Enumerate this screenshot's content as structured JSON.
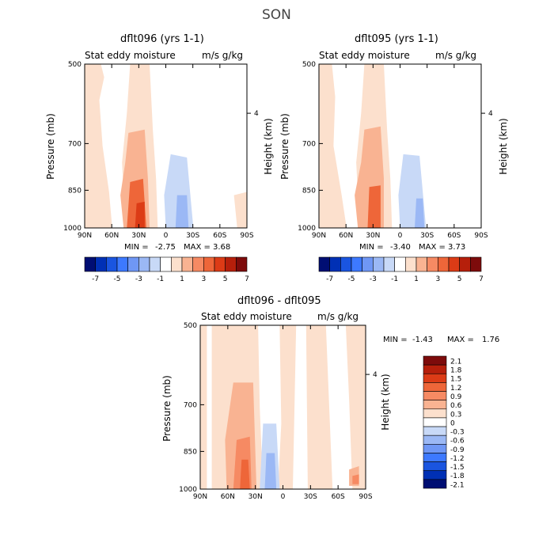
{
  "title": "SON",
  "chart_data": [
    {
      "type": "heatmap",
      "title": "dflt096 (yrs 1-1)",
      "subtitle_left": "Stat eddy moisture",
      "subtitle_right": "m/s g/kg",
      "ylabel": "Pressure (mb)",
      "y2label": "Height (km)",
      "x_ticks": [
        "90N",
        "60N",
        "30N",
        "0",
        "30S",
        "60S",
        "90S"
      ],
      "y_ticks": [
        "500",
        "700",
        "850",
        "1000"
      ],
      "y2_ticks": [
        "4"
      ],
      "stats": {
        "min_label": "MIN =",
        "min": "-2.75",
        "max_label": "MAX =",
        "max": "3.68"
      },
      "colorbar_labels": [
        "-7",
        "-5",
        "-3",
        "-1",
        "1",
        "3",
        "5",
        "7"
      ],
      "colorbar_colors": [
        "#000e73",
        "#0030b5",
        "#1a55e0",
        "#3d79ff",
        "#6f97f5",
        "#9bb8f5",
        "#c8d9f7",
        "#ffffff",
        "#fce0cd",
        "#f9b392",
        "#f68a63",
        "#ee6639",
        "#dc3b16",
        "#b61f0b",
        "#7d0b0b"
      ],
      "layers": [
        {
          "value": 0.5,
          "xy": [
            [
              0,
              0
            ],
            [
              10,
              0
            ],
            [
              12,
              8
            ],
            [
              9,
              22
            ],
            [
              11,
              50
            ],
            [
              15,
              78
            ],
            [
              17,
              100
            ],
            [
              0,
              100
            ]
          ]
        },
        {
          "value": 0.5,
          "xy": [
            [
              28,
              0
            ],
            [
              40,
              0
            ],
            [
              42,
              40
            ],
            [
              44,
              70
            ],
            [
              45,
              100
            ],
            [
              25,
              100
            ],
            [
              23,
              60
            ],
            [
              26,
              30
            ]
          ]
        },
        {
          "value": -0.5,
          "xy": [
            [
              42,
              0
            ],
            [
              100,
              0
            ],
            [
              100,
              100
            ],
            [
              46,
              100
            ],
            [
              45,
              70
            ],
            [
              43,
              40
            ]
          ]
        },
        {
          "value": 0.5,
          "xy": [
            [
              92,
              80
            ],
            [
              100,
              78
            ],
            [
              100,
              100
            ],
            [
              94,
              100
            ]
          ]
        },
        {
          "value": 1.5,
          "xy": [
            [
              27,
              42
            ],
            [
              37,
              40
            ],
            [
              39,
              70
            ],
            [
              40,
              100
            ],
            [
              24,
              100
            ],
            [
              22,
              80
            ],
            [
              25,
              60
            ]
          ]
        },
        {
          "value": 3.0,
          "xy": [
            [
              28,
              72
            ],
            [
              36,
              70
            ],
            [
              38,
              100
            ],
            [
              26,
              100
            ]
          ]
        },
        {
          "value": 4.0,
          "xy": [
            [
              32,
              85
            ],
            [
              37,
              84
            ],
            [
              37,
              100
            ],
            [
              31,
              100
            ]
          ]
        },
        {
          "value": -1.5,
          "xy": [
            [
              53,
              55
            ],
            [
              63,
              57
            ],
            [
              67,
              100
            ],
            [
              50,
              100
            ],
            [
              49,
              80
            ]
          ]
        },
        {
          "value": -2.5,
          "xy": [
            [
              57,
              80
            ],
            [
              63,
              80
            ],
            [
              64,
              100
            ],
            [
              56,
              100
            ]
          ]
        }
      ]
    },
    {
      "type": "heatmap",
      "title": "dflt095 (yrs 1-1)",
      "subtitle_left": "Stat eddy moisture",
      "subtitle_right": "m/s g/kg",
      "ylabel": "Pressure (mb)",
      "y2label": "Height (km)",
      "x_ticks": [
        "90N",
        "60N",
        "30N",
        "0",
        "30S",
        "60S",
        "90S"
      ],
      "y_ticks": [
        "500",
        "700",
        "850",
        "1000"
      ],
      "y2_ticks": [
        "4"
      ],
      "stats": {
        "min_label": "MIN =",
        "min": "-3.40",
        "max_label": "MAX =",
        "max": "3.73"
      },
      "colorbar_labels": [
        "-7",
        "-5",
        "-3",
        "-1",
        "1",
        "3",
        "5",
        "7"
      ],
      "colorbar_colors": [
        "#000e73",
        "#0030b5",
        "#1a55e0",
        "#3d79ff",
        "#6f97f5",
        "#9bb8f5",
        "#c8d9f7",
        "#ffffff",
        "#fce0cd",
        "#f9b392",
        "#f68a63",
        "#ee6639",
        "#dc3b16",
        "#b61f0b",
        "#7d0b0b"
      ],
      "layers": [
        {
          "value": 0.5,
          "xy": [
            [
              0,
              0
            ],
            [
              8,
              0
            ],
            [
              10,
              20
            ],
            [
              9,
              50
            ],
            [
              14,
              80
            ],
            [
              17,
              100
            ],
            [
              0,
              100
            ]
          ]
        },
        {
          "value": 0.5,
          "xy": [
            [
              28,
              0
            ],
            [
              40,
              0
            ],
            [
              42,
              40
            ],
            [
              44,
              70
            ],
            [
              45,
              100
            ],
            [
              25,
              100
            ],
            [
              23,
              60
            ],
            [
              26,
              30
            ]
          ]
        },
        {
          "value": -0.5,
          "xy": [
            [
              42,
              0
            ],
            [
              100,
              0
            ],
            [
              100,
              100
            ],
            [
              46,
              100
            ],
            [
              45,
              70
            ],
            [
              43,
              40
            ]
          ]
        },
        {
          "value": 1.5,
          "xy": [
            [
              28,
              40
            ],
            [
              38,
              38
            ],
            [
              40,
              70
            ],
            [
              40,
              100
            ],
            [
              24,
              100
            ],
            [
              22,
              80
            ],
            [
              26,
              60
            ]
          ]
        },
        {
          "value": 3.0,
          "xy": [
            [
              31,
              75
            ],
            [
              38,
              74
            ],
            [
              38,
              100
            ],
            [
              30,
              100
            ]
          ]
        },
        {
          "value": -1.5,
          "xy": [
            [
              52,
              55
            ],
            [
              62,
              56
            ],
            [
              66,
              100
            ],
            [
              50,
              100
            ],
            [
              49,
              80
            ]
          ]
        },
        {
          "value": -3.0,
          "xy": [
            [
              60,
              82
            ],
            [
              64,
              82
            ],
            [
              65,
              100
            ],
            [
              59,
              100
            ]
          ]
        }
      ]
    },
    {
      "type": "heatmap",
      "title": "dflt096 - dflt095",
      "subtitle_left": "Stat eddy moisture",
      "subtitle_right": "m/s g/kg",
      "ylabel": "Pressure (mb)",
      "y2label": "Height (km)",
      "x_ticks": [
        "90N",
        "60N",
        "30N",
        "0",
        "30S",
        "60S",
        "90S"
      ],
      "y_ticks": [
        "500",
        "700",
        "850",
        "1000"
      ],
      "y2_ticks": [
        "4"
      ],
      "stats": {
        "min_label": "MIN =",
        "min": "-1.43",
        "max_label": "MAX =",
        "max": "1.76"
      },
      "colorbar_labels": [
        "2.1",
        "1.8",
        "1.5",
        "1.2",
        "0.9",
        "0.6",
        "0.3",
        "0",
        "-0.3",
        "-0.6",
        "-0.9",
        "-1.2",
        "-1.5",
        "-1.8",
        "-2.1"
      ],
      "colorbar_colors": [
        "#7d0b0b",
        "#b61f0b",
        "#dc3b16",
        "#ee6639",
        "#f68a63",
        "#f9b392",
        "#fce0cd",
        "#ffffff",
        "#c8d9f7",
        "#9bb8f5",
        "#6f97f5",
        "#3d79ff",
        "#1a55e0",
        "#0030b5",
        "#000e73"
      ],
      "layers": [
        {
          "value": 0.15,
          "xy": [
            [
              0,
              0
            ],
            [
              100,
              0
            ],
            [
              100,
              100
            ],
            [
              0,
              100
            ]
          ]
        },
        {
          "value": -0.15,
          "xy": [
            [
              4,
              0
            ],
            [
              7,
              0
            ],
            [
              7,
              100
            ],
            [
              4,
              100
            ]
          ]
        },
        {
          "value": -0.15,
          "xy": [
            [
              35,
              0
            ],
            [
              48,
              0
            ],
            [
              49,
              60
            ],
            [
              47,
              100
            ],
            [
              38,
              100
            ],
            [
              36,
              50
            ]
          ]
        },
        {
          "value": -0.15,
          "xy": [
            [
              58,
              0
            ],
            [
              64,
              0
            ],
            [
              65,
              100
            ],
            [
              56,
              100
            ]
          ]
        },
        {
          "value": -0.15,
          "xy": [
            [
              76,
              0
            ],
            [
              88,
              0
            ],
            [
              90,
              45
            ],
            [
              92,
              100
            ],
            [
              80,
              100
            ],
            [
              78,
              50
            ]
          ]
        },
        {
          "value": 0.45,
          "xy": [
            [
              20,
              35
            ],
            [
              32,
              35
            ],
            [
              34,
              100
            ],
            [
              16,
              100
            ],
            [
              15,
              70
            ]
          ]
        },
        {
          "value": 0.75,
          "xy": [
            [
              22,
              70
            ],
            [
              30,
              68
            ],
            [
              31,
              100
            ],
            [
              20,
              100
            ]
          ]
        },
        {
          "value": 1.05,
          "xy": [
            [
              25,
              82
            ],
            [
              29,
              82
            ],
            [
              30,
              100
            ],
            [
              24,
              100
            ]
          ]
        },
        {
          "value": -0.45,
          "xy": [
            [
              38,
              60
            ],
            [
              46,
              60
            ],
            [
              48,
              100
            ],
            [
              36,
              100
            ]
          ]
        },
        {
          "value": -0.75,
          "xy": [
            [
              40,
              78
            ],
            [
              45,
              78
            ],
            [
              46,
              100
            ],
            [
              39,
              100
            ]
          ]
        },
        {
          "value": 0.45,
          "xy": [
            [
              90,
              88
            ],
            [
              96,
              86
            ],
            [
              96,
              98
            ],
            [
              90,
              98
            ]
          ]
        },
        {
          "value": 0.75,
          "xy": [
            [
              92,
              92
            ],
            [
              96,
              91
            ],
            [
              96,
              97
            ],
            [
              92,
              97
            ]
          ]
        }
      ]
    }
  ]
}
